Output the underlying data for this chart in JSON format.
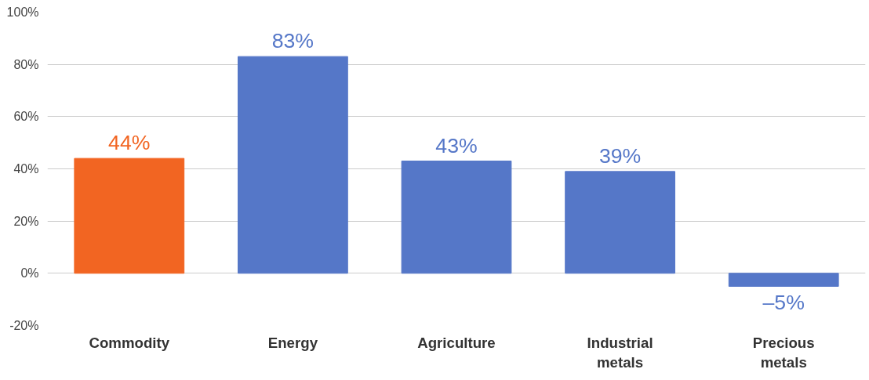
{
  "chart_data": {
    "type": "bar",
    "categories": [
      "Commodity",
      "Energy",
      "Agriculture",
      "Industrial metals",
      "Precious metals"
    ],
    "values": [
      44,
      83,
      43,
      39,
      -5
    ],
    "colors": [
      "#f26522",
      "#5577c8",
      "#5577c8",
      "#5577c8",
      "#5577c8"
    ],
    "value_labels": [
      "44%",
      "83%",
      "43%",
      "39%",
      "–5%"
    ],
    "ylim": [
      -20,
      100
    ],
    "yticks": [
      {
        "value": -20,
        "label": "-20%"
      },
      {
        "value": 0,
        "label": "0%"
      },
      {
        "value": 20,
        "label": "20%"
      },
      {
        "value": 40,
        "label": "40%"
      },
      {
        "value": 60,
        "label": "60%"
      },
      {
        "value": 80,
        "label": "80%"
      },
      {
        "value": 100,
        "label": "100%"
      }
    ],
    "grid": "y"
  }
}
